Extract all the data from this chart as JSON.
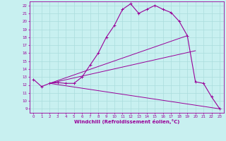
{
  "xlabel": "Windchill (Refroidissement éolien,°C)",
  "bg_color": "#c8f0f0",
  "line_color": "#990099",
  "grid_color": "#aadddd",
  "xlim": [
    -0.5,
    23.5
  ],
  "ylim": [
    8.5,
    22.5
  ],
  "yticks": [
    9,
    10,
    11,
    12,
    13,
    14,
    15,
    16,
    17,
    18,
    19,
    20,
    21,
    22
  ],
  "xticks": [
    0,
    1,
    2,
    3,
    4,
    5,
    6,
    7,
    8,
    9,
    10,
    11,
    12,
    13,
    14,
    15,
    16,
    17,
    18,
    19,
    20,
    21,
    22,
    23
  ],
  "curve1_x": [
    0,
    1,
    2,
    3,
    4,
    5,
    6,
    7,
    8,
    9,
    10,
    11,
    12,
    13,
    14,
    15,
    16,
    17,
    18,
    19,
    20,
    21,
    22,
    23
  ],
  "curve1_y": [
    12.7,
    11.8,
    12.2,
    12.3,
    12.2,
    12.2,
    13.0,
    14.5,
    16.0,
    18.0,
    19.5,
    21.5,
    22.2,
    21.0,
    21.5,
    22.0,
    21.5,
    21.1,
    20.0,
    18.2,
    12.4,
    12.2,
    10.5,
    9.0
  ],
  "curve2_x": [
    2,
    19
  ],
  "curve2_y": [
    12.2,
    18.2
  ],
  "curve3_x": [
    2,
    20
  ],
  "curve3_y": [
    12.2,
    16.3
  ],
  "curve4_x": [
    2,
    23
  ],
  "curve4_y": [
    12.2,
    9.0
  ]
}
